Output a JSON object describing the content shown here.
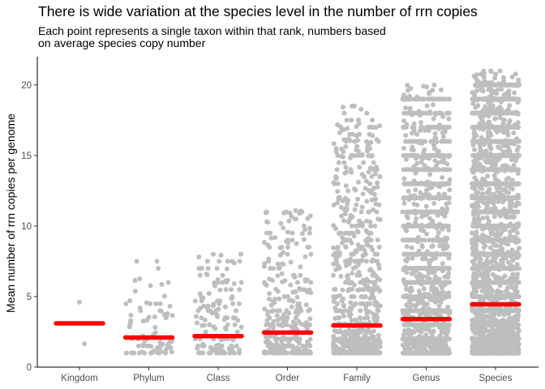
{
  "chart_data": {
    "type": "scatter",
    "title": "There is wide variation at the species level in the number of rrn copies",
    "subtitle": [
      "Each point represents a single taxon within that rank, numbers based",
      "on average species copy number"
    ],
    "xlabel": "",
    "ylabel": "Mean number of rrn copies per genome",
    "categories": [
      "Kingdom",
      "Phylum",
      "Class",
      "Order",
      "Family",
      "Genus",
      "Species"
    ],
    "ylim": [
      0,
      22
    ],
    "yticks": [
      0,
      5,
      10,
      15,
      20
    ],
    "grid": false,
    "legend": "none",
    "mean_values": [
      3.1,
      2.1,
      2.2,
      2.45,
      2.95,
      3.4,
      4.45
    ],
    "approx_point_counts": [
      2,
      80,
      140,
      320,
      700,
      1800,
      4000
    ],
    "max_values": [
      4.6,
      7.5,
      8.0,
      11.1,
      18.5,
      20.0,
      21.0
    ],
    "points_color": "#bebebe",
    "mean_color": "#ff0000"
  }
}
